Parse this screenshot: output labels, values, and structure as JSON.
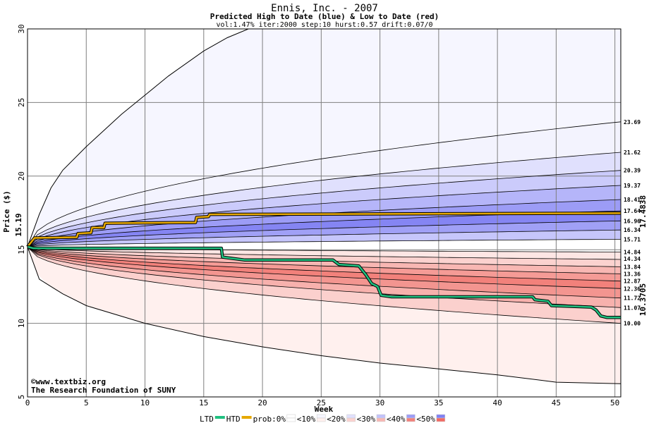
{
  "chart_data": {
    "type": "area",
    "title": "Ennis, Inc. - 2007",
    "subtitle": "Predicted High to Date (blue) &  Low to Date (red)",
    "params": "vol:1.47% iter:2000 step:10 hurst:0.57 drift:0.07/0",
    "xlabel": "Week",
    "ylabel": "Price ($)",
    "xlim": [
      0,
      50.5
    ],
    "ylim": [
      5,
      30
    ],
    "xticks": [
      0,
      5,
      10,
      15,
      20,
      25,
      30,
      35,
      40,
      45,
      50
    ],
    "yticks": [
      5,
      10,
      15,
      20,
      25,
      30
    ],
    "grid": true,
    "start_price": 15.19,
    "start_price_label": "15.19",
    "right_labels": [
      "23.69",
      "21.62",
      "20.39",
      "19.37",
      "18.41",
      "17.64",
      "16.96",
      "16.34",
      "15.71",
      "14.84",
      "14.34",
      "13.84",
      "13.36",
      "12.87",
      "12.36",
      "11.72",
      "11.07",
      "10.00"
    ],
    "htd_final_label": "17.4838",
    "ltd_final_label": "10.3705",
    "upper_envelope": [
      [
        0,
        15.2
      ],
      [
        1,
        17.4
      ],
      [
        2,
        19.2
      ],
      [
        3,
        20.4
      ],
      [
        5,
        22.0
      ],
      [
        8,
        24.2
      ],
      [
        10,
        25.5
      ],
      [
        12,
        26.8
      ],
      [
        15,
        28.5
      ],
      [
        17,
        29.4
      ],
      [
        18.8,
        30.0
      ]
    ],
    "lower_envelope": [
      [
        0,
        15.2
      ],
      [
        1,
        13.0
      ],
      [
        2,
        12.5
      ],
      [
        3,
        12.0
      ],
      [
        5,
        11.2
      ],
      [
        10,
        10.0
      ],
      [
        15,
        9.1
      ],
      [
        20,
        8.4
      ],
      [
        25,
        7.8
      ],
      [
        30,
        7.3
      ],
      [
        35,
        6.9
      ],
      [
        40,
        6.5
      ],
      [
        45,
        6.0
      ],
      [
        50.5,
        5.9
      ]
    ],
    "upper_percentile_final": [
      23.69,
      21.62,
      20.39,
      19.37,
      18.41,
      17.64,
      16.96,
      16.34,
      15.71
    ],
    "lower_percentile_final": [
      14.84,
      14.34,
      13.84,
      13.36,
      12.87,
      12.36,
      11.72,
      11.07,
      10.0
    ],
    "series": [
      {
        "name": "HTD",
        "color": "#e6a800",
        "points": [
          [
            0,
            15.2
          ],
          [
            0.6,
            15.8
          ],
          [
            4.2,
            15.85
          ],
          [
            4.3,
            16.1
          ],
          [
            5.4,
            16.15
          ],
          [
            5.5,
            16.5
          ],
          [
            6.5,
            16.5
          ],
          [
            6.6,
            16.8
          ],
          [
            14.3,
            16.85
          ],
          [
            14.4,
            17.2
          ],
          [
            15.4,
            17.25
          ],
          [
            15.5,
            17.4
          ],
          [
            50.5,
            17.48
          ]
        ]
      },
      {
        "name": "LTD",
        "color": "#20c080",
        "points": [
          [
            0,
            15.2
          ],
          [
            0.5,
            15.1
          ],
          [
            16.5,
            15.1
          ],
          [
            16.6,
            14.5
          ],
          [
            17.5,
            14.4
          ],
          [
            18.5,
            14.3
          ],
          [
            26,
            14.3
          ],
          [
            26.5,
            14.0
          ],
          [
            28.2,
            13.9
          ],
          [
            28.8,
            13.3
          ],
          [
            29.3,
            12.7
          ],
          [
            29.8,
            12.5
          ],
          [
            30.1,
            11.9
          ],
          [
            31,
            11.8
          ],
          [
            43,
            11.8
          ],
          [
            43.2,
            11.6
          ],
          [
            44.3,
            11.5
          ],
          [
            44.6,
            11.2
          ],
          [
            48,
            11.1
          ],
          [
            48.4,
            10.9
          ],
          [
            48.8,
            10.5
          ],
          [
            49.3,
            10.4
          ],
          [
            50.5,
            10.4
          ]
        ]
      }
    ],
    "legend": {
      "placement": "bottom",
      "items": [
        "LTD",
        "HTD",
        "prob:0%",
        "<10%",
        "<20%",
        "<30%",
        "<40%",
        "<50%"
      ]
    }
  },
  "watermark": {
    "line1": "©www.textbiz.org",
    "line2": "The Research Foundation of SUNY"
  },
  "colors": {
    "upper_bands": [
      "#f3f3fe",
      "#e0e0fd",
      "#cbcbfb",
      "#b5b5f9",
      "#9c9cf6",
      "#8585f3",
      "#a0a0f6",
      "#c6c6fb",
      "#e0e0fd"
    ],
    "lower_bands": [
      "#fde6e4",
      "#fbd2cf",
      "#f8b7b3",
      "#f59b96",
      "#f2817b",
      "#f39590",
      "#f7b1ad",
      "#fbd0cd",
      "#fde6e4"
    ],
    "upper_outer": "#f6f6ff",
    "lower_outer": "#fff0ee",
    "htd": "#e6a800",
    "ltd": "#20c080",
    "htd_label": "#a07800",
    "ltd_label": "#0a8a5a",
    "start_label": "#0a7a3a"
  }
}
